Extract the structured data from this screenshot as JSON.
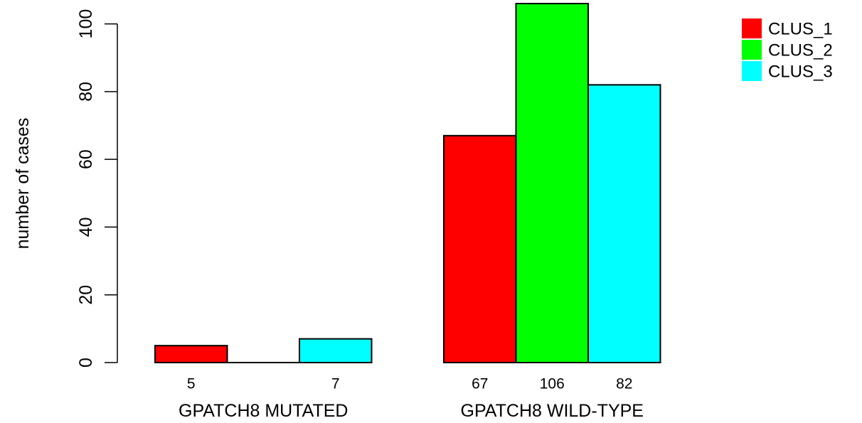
{
  "chart_data": {
    "type": "bar",
    "categories": [
      "GPATCH8 MUTATED",
      "GPATCH8 WILD-TYPE"
    ],
    "series": [
      {
        "name": "CLUS_1",
        "color": "#ff0000",
        "values": [
          5,
          67
        ]
      },
      {
        "name": "CLUS_2",
        "color": "#00ff00",
        "values": [
          0,
          106
        ]
      },
      {
        "name": "CLUS_3",
        "color": "#00ffff",
        "values": [
          7,
          82
        ]
      }
    ],
    "data_labels": [
      [
        "5",
        "",
        "7"
      ],
      [
        "67",
        "106",
        "82"
      ]
    ],
    "ylabel": "number of cases",
    "xlabel": "",
    "title": "",
    "ylim": [
      0,
      106
    ],
    "yticks": [
      0,
      20,
      40,
      60,
      80,
      100
    ],
    "legend": {
      "position": "top-right",
      "entries": [
        "CLUS_1",
        "CLUS_2",
        "CLUS_3"
      ]
    },
    "grid": false
  }
}
